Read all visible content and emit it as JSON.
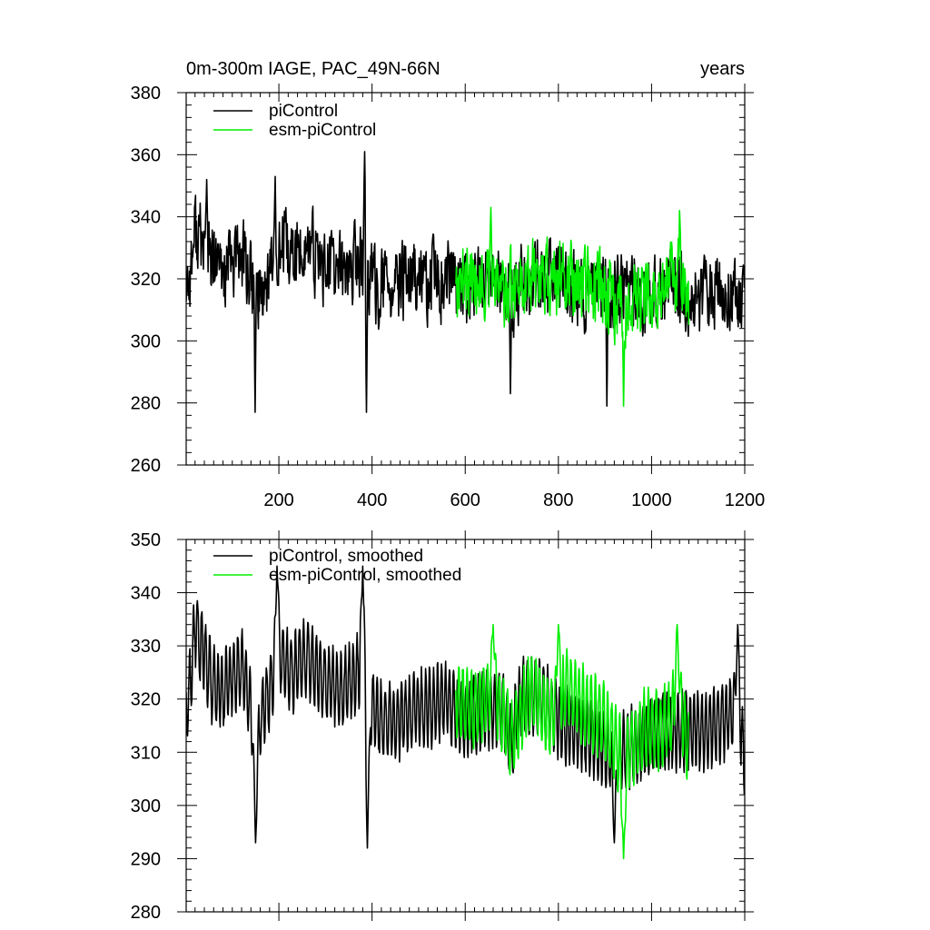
{
  "chart_data": [
    {
      "type": "line",
      "title_left": "0m-300m IAGE, PAC_49N-66N",
      "title_right": "years",
      "xlim": [
        1,
        1200
      ],
      "ylim": [
        260,
        380
      ],
      "x_ticks": [
        200,
        400,
        600,
        800,
        1000,
        1200
      ],
      "x_tick_labels": [
        "200",
        "400",
        "600",
        "800",
        "1000",
        "1200"
      ],
      "y_ticks": [
        260,
        280,
        300,
        320,
        340,
        360,
        380
      ],
      "y_tick_labels": [
        "260",
        "280",
        "300",
        "320",
        "340",
        "360",
        "380"
      ],
      "legend_position": "top-left",
      "series": [
        {
          "name": "piControl",
          "color": "#000000",
          "x_start": 1,
          "x_end": 1200,
          "anchor_x": [
            1,
            10,
            20,
            40,
            60,
            80,
            100,
            120,
            150,
            170,
            200,
            230,
            260,
            300,
            340,
            370,
            385,
            400,
            420,
            450,
            480,
            520,
            560,
            600,
            640,
            680,
            700,
            720,
            760,
            800,
            840,
            880,
            910,
            940,
            980,
            1020,
            1060,
            1100,
            1140,
            1180,
            1200
          ],
          "anchor_y": [
            318,
            322,
            336,
            330,
            324,
            322,
            325,
            328,
            316,
            318,
            330,
            326,
            330,
            324,
            322,
            326,
            324,
            318,
            318,
            316,
            320,
            318,
            320,
            316,
            318,
            318,
            314,
            320,
            320,
            318,
            316,
            316,
            316,
            316,
            315,
            315,
            315,
            316,
            316,
            318,
            312
          ],
          "noise_amplitude": 11,
          "events": [
            {
              "x": 149,
              "y": 277
            },
            {
              "x": 384,
              "y": 361
            },
            {
              "x": 388,
              "y": 277
            },
            {
              "x": 45,
              "y": 352
            },
            {
              "x": 192,
              "y": 353
            },
            {
              "x": 697,
              "y": 283
            },
            {
              "x": 904,
              "y": 279
            }
          ]
        },
        {
          "name": "esm-piControl",
          "color": "#00ee00",
          "x_start": 580,
          "x_end": 1080,
          "anchor_x": [
            580,
            620,
            660,
            700,
            740,
            780,
            820,
            860,
            900,
            940,
            980,
            1020,
            1060,
            1080
          ],
          "anchor_y": [
            320,
            318,
            320,
            316,
            322,
            318,
            322,
            318,
            314,
            310,
            314,
            316,
            322,
            312
          ],
          "noise_amplitude": 11,
          "events": [
            {
              "x": 940,
              "y": 279
            },
            {
              "x": 1060,
              "y": 342
            },
            {
              "x": 655,
              "y": 343
            }
          ]
        }
      ]
    },
    {
      "type": "line",
      "xlim": [
        1,
        1200
      ],
      "ylim": [
        280,
        350
      ],
      "x_ticks": [
        200,
        400,
        600,
        800,
        1000,
        1200
      ],
      "y_ticks": [
        280,
        290,
        300,
        310,
        320,
        330,
        340,
        350
      ],
      "y_tick_labels": [
        "280",
        "290",
        "300",
        "310",
        "320",
        "330",
        "340",
        "350"
      ],
      "legend_position": "top-left",
      "series": [
        {
          "name": "piControl, smoothed",
          "color": "#000000",
          "x_start": 1,
          "x_end": 1200,
          "anchor_x": [
            1,
            10,
            20,
            40,
            60,
            80,
            100,
            120,
            150,
            170,
            200,
            230,
            260,
            300,
            340,
            370,
            385,
            400,
            420,
            450,
            480,
            520,
            560,
            600,
            640,
            680,
            700,
            720,
            760,
            800,
            840,
            880,
            910,
            940,
            980,
            1020,
            1060,
            1100,
            1140,
            1180,
            1200
          ],
          "anchor_y": [
            318,
            322,
            334,
            328,
            322,
            322,
            324,
            326,
            314,
            318,
            328,
            325,
            328,
            323,
            322,
            325,
            324,
            318,
            316,
            315,
            318,
            318,
            320,
            316,
            318,
            318,
            312,
            320,
            320,
            316,
            314,
            312,
            310,
            310,
            312,
            314,
            314,
            314,
            315,
            318,
            308
          ],
          "amplitude": 7,
          "events": [
            {
              "x": 150,
              "y": 293
            },
            {
              "x": 390,
              "y": 292
            },
            {
              "x": 196,
              "y": 345
            },
            {
              "x": 380,
              "y": 345
            },
            {
              "x": 920,
              "y": 293
            },
            {
              "x": 1185,
              "y": 334
            }
          ]
        },
        {
          "name": "esm-piControl, smoothed",
          "color": "#00ee00",
          "x_start": 580,
          "x_end": 1080,
          "anchor_x": [
            580,
            620,
            660,
            700,
            740,
            780,
            820,
            860,
            900,
            940,
            980,
            1020,
            1060,
            1080
          ],
          "anchor_y": [
            320,
            318,
            322,
            312,
            322,
            316,
            322,
            318,
            316,
            308,
            314,
            314,
            320,
            310
          ],
          "amplitude": 7,
          "events": [
            {
              "x": 940,
              "y": 290
            },
            {
              "x": 1055,
              "y": 334
            },
            {
              "x": 660,
              "y": 334
            },
            {
              "x": 800,
              "y": 334
            }
          ]
        }
      ]
    }
  ]
}
